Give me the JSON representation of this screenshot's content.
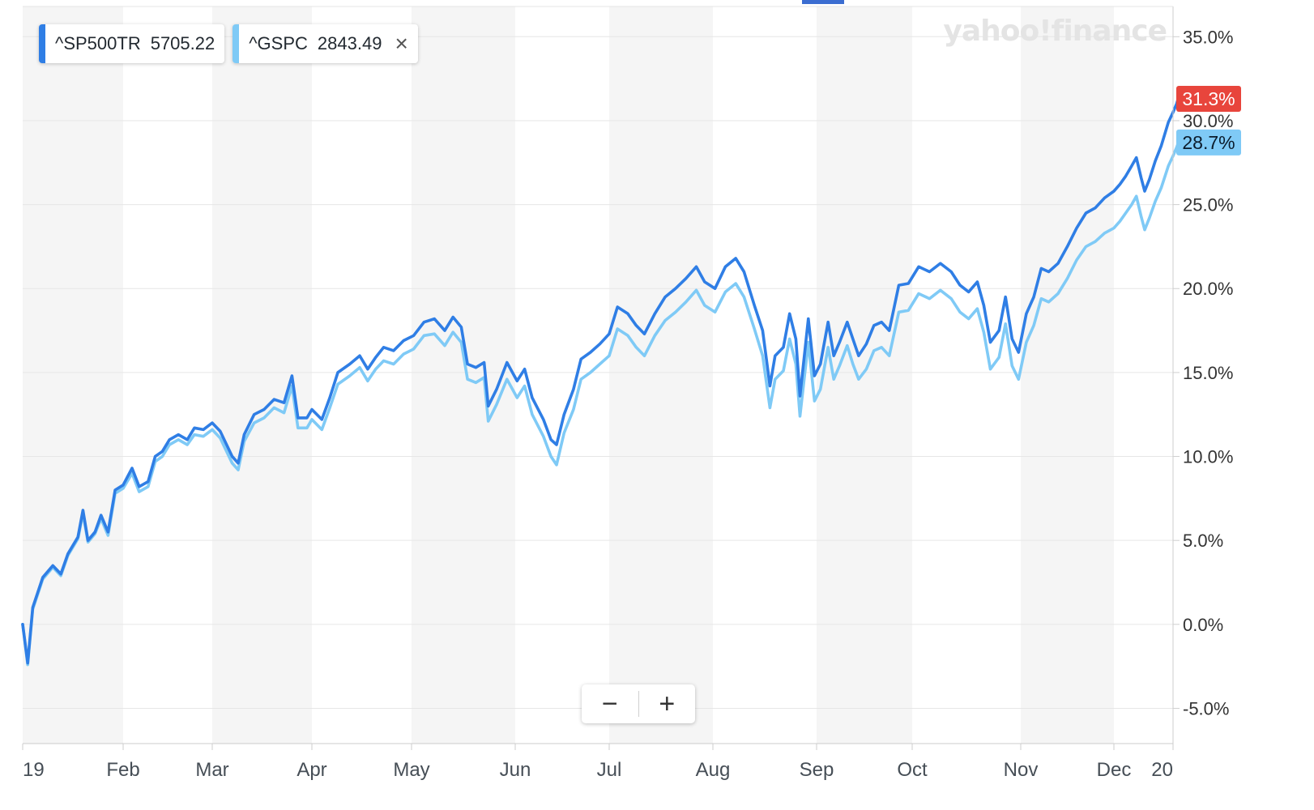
{
  "watermark": "yahoo!finance",
  "legend": [
    {
      "symbol": "^SP500TR",
      "value": "5705.22",
      "color": "#2f7ee5"
    },
    {
      "symbol": "^GSPC",
      "value": "2843.49",
      "color": "#7fcaf6",
      "closable": true
    }
  ],
  "zoom": {
    "minus_label": "−",
    "plus_label": "+"
  },
  "colors": {
    "sp500tr": "#2f7ee5",
    "gspc": "#7fcaf6",
    "tag_red": "#e8453c",
    "tag_lightblue": "#7fcaf6",
    "band": "#f5f5f5"
  },
  "chart_data": {
    "type": "line",
    "x_axis_labels": [
      "19",
      "Feb",
      "Mar",
      "Apr",
      "May",
      "Jun",
      "Jul",
      "Aug",
      "Sep",
      "Oct",
      "Nov",
      "Dec",
      "20"
    ],
    "y_ticks": [
      "35.0%",
      "30.0%",
      "25.0%",
      "20.0%",
      "15.0%",
      "10.0%",
      "5.0%",
      "0.0%",
      "-5.0%"
    ],
    "ylim": [
      -7.1,
      36.8
    ],
    "x_range": [
      0,
      12
    ],
    "last_value_tags": [
      {
        "series": "^SP500TR",
        "label": "31.3%",
        "value": 31.3
      },
      {
        "series": "^GSPC",
        "label": "28.7%",
        "value": 28.7
      }
    ],
    "series": [
      {
        "name": "^SP500TR",
        "points": [
          [
            0.0,
            0.0
          ],
          [
            0.05,
            -2.3
          ],
          [
            0.1,
            1.0
          ],
          [
            0.2,
            2.8
          ],
          [
            0.3,
            3.5
          ],
          [
            0.38,
            3.0
          ],
          [
            0.45,
            4.2
          ],
          [
            0.55,
            5.2
          ],
          [
            0.6,
            6.8
          ],
          [
            0.65,
            5.0
          ],
          [
            0.72,
            5.5
          ],
          [
            0.78,
            6.5
          ],
          [
            0.85,
            5.5
          ],
          [
            0.92,
            8.0
          ],
          [
            1.0,
            8.3
          ],
          [
            1.1,
            9.3
          ],
          [
            1.18,
            8.2
          ],
          [
            1.28,
            8.5
          ],
          [
            1.36,
            10.0
          ],
          [
            1.44,
            10.3
          ],
          [
            1.52,
            11.0
          ],
          [
            1.62,
            11.3
          ],
          [
            1.72,
            11.0
          ],
          [
            1.8,
            11.7
          ],
          [
            1.9,
            11.6
          ],
          [
            2.0,
            12.0
          ],
          [
            2.08,
            11.5
          ],
          [
            2.2,
            10.0
          ],
          [
            2.26,
            9.6
          ],
          [
            2.32,
            11.3
          ],
          [
            2.42,
            12.5
          ],
          [
            2.52,
            12.8
          ],
          [
            2.62,
            13.4
          ],
          [
            2.72,
            13.2
          ],
          [
            2.8,
            14.8
          ],
          [
            2.86,
            12.3
          ],
          [
            2.95,
            12.3
          ],
          [
            3.0,
            12.8
          ],
          [
            3.1,
            12.2
          ],
          [
            3.18,
            13.5
          ],
          [
            3.26,
            15.0
          ],
          [
            3.38,
            15.5
          ],
          [
            3.48,
            16.0
          ],
          [
            3.56,
            15.2
          ],
          [
            3.64,
            15.9
          ],
          [
            3.72,
            16.5
          ],
          [
            3.82,
            16.3
          ],
          [
            3.92,
            16.9
          ],
          [
            4.02,
            17.2
          ],
          [
            4.12,
            18.0
          ],
          [
            4.22,
            18.2
          ],
          [
            4.32,
            17.5
          ],
          [
            4.4,
            18.3
          ],
          [
            4.48,
            17.7
          ],
          [
            4.54,
            15.5
          ],
          [
            4.62,
            15.3
          ],
          [
            4.7,
            15.6
          ],
          [
            4.74,
            13.0
          ],
          [
            4.82,
            14.0
          ],
          [
            4.92,
            15.6
          ],
          [
            5.02,
            14.5
          ],
          [
            5.1,
            15.2
          ],
          [
            5.18,
            13.5
          ],
          [
            5.3,
            12.2
          ],
          [
            5.38,
            11.0
          ],
          [
            5.44,
            10.7
          ],
          [
            5.52,
            12.5
          ],
          [
            5.62,
            14.0
          ],
          [
            5.7,
            15.8
          ],
          [
            5.8,
            16.2
          ],
          [
            5.9,
            16.7
          ],
          [
            6.0,
            17.3
          ],
          [
            6.08,
            18.9
          ],
          [
            6.18,
            18.5
          ],
          [
            6.26,
            17.8
          ],
          [
            6.34,
            17.3
          ],
          [
            6.44,
            18.5
          ],
          [
            6.54,
            19.5
          ],
          [
            6.64,
            20.0
          ],
          [
            6.74,
            20.6
          ],
          [
            6.84,
            21.3
          ],
          [
            6.92,
            20.4
          ],
          [
            7.02,
            20.0
          ],
          [
            7.12,
            21.3
          ],
          [
            7.22,
            21.8
          ],
          [
            7.3,
            21.0
          ],
          [
            7.4,
            19.0
          ],
          [
            7.48,
            17.5
          ],
          [
            7.55,
            14.2
          ],
          [
            7.6,
            16.0
          ],
          [
            7.68,
            16.5
          ],
          [
            7.74,
            18.5
          ],
          [
            7.8,
            17.0
          ],
          [
            7.84,
            13.6
          ],
          [
            7.92,
            18.2
          ],
          [
            7.98,
            14.8
          ],
          [
            8.04,
            15.5
          ],
          [
            8.12,
            18.0
          ],
          [
            8.18,
            16.0
          ],
          [
            8.24,
            16.8
          ],
          [
            8.32,
            18.0
          ],
          [
            8.38,
            17.0
          ],
          [
            8.44,
            16.0
          ],
          [
            8.52,
            16.7
          ],
          [
            8.6,
            17.8
          ],
          [
            8.68,
            18.0
          ],
          [
            8.76,
            17.5
          ],
          [
            8.86,
            20.2
          ],
          [
            8.96,
            20.3
          ],
          [
            9.06,
            21.3
          ],
          [
            9.16,
            21.0
          ],
          [
            9.26,
            21.5
          ],
          [
            9.36,
            21.0
          ],
          [
            9.44,
            20.2
          ],
          [
            9.52,
            19.8
          ],
          [
            9.6,
            20.4
          ],
          [
            9.66,
            19.0
          ],
          [
            9.72,
            16.8
          ],
          [
            9.8,
            17.5
          ],
          [
            9.86,
            19.5
          ],
          [
            9.92,
            17.0
          ],
          [
            9.98,
            16.2
          ],
          [
            10.06,
            18.5
          ],
          [
            10.14,
            19.5
          ],
          [
            10.22,
            21.2
          ],
          [
            10.3,
            21.0
          ],
          [
            10.4,
            21.5
          ],
          [
            10.5,
            22.5
          ],
          [
            10.6,
            23.6
          ],
          [
            10.7,
            24.5
          ],
          [
            10.8,
            24.8
          ],
          [
            10.9,
            25.4
          ],
          [
            11.0,
            25.8
          ],
          [
            11.1,
            26.2
          ],
          [
            11.2,
            26.7
          ],
          [
            11.3,
            27.3
          ],
          [
            11.38,
            27.8
          ],
          [
            11.46,
            26.6
          ],
          [
            11.52,
            25.8
          ],
          [
            11.6,
            26.5
          ],
          [
            11.7,
            27.6
          ],
          [
            11.8,
            28.5
          ],
          [
            11.92,
            29.9
          ],
          [
            12.0,
            30.5
          ],
          [
            12.06,
            31.0
          ],
          [
            12.12,
            31.7
          ],
          [
            12.18,
            31.3
          ]
        ]
      },
      {
        "name": "^GSPC",
        "points": [
          [
            0.0,
            0.0
          ],
          [
            0.05,
            -2.4
          ],
          [
            0.1,
            0.9
          ],
          [
            0.2,
            2.7
          ],
          [
            0.3,
            3.4
          ],
          [
            0.38,
            2.9
          ],
          [
            0.45,
            4.1
          ],
          [
            0.55,
            5.1
          ],
          [
            0.6,
            6.6
          ],
          [
            0.65,
            4.9
          ],
          [
            0.72,
            5.4
          ],
          [
            0.78,
            6.3
          ],
          [
            0.85,
            5.3
          ],
          [
            0.92,
            7.8
          ],
          [
            1.0,
            8.1
          ],
          [
            1.1,
            9.0
          ],
          [
            1.18,
            7.9
          ],
          [
            1.28,
            8.2
          ],
          [
            1.36,
            9.7
          ],
          [
            1.44,
            10.0
          ],
          [
            1.52,
            10.7
          ],
          [
            1.62,
            11.0
          ],
          [
            1.72,
            10.7
          ],
          [
            1.8,
            11.3
          ],
          [
            1.9,
            11.2
          ],
          [
            2.0,
            11.6
          ],
          [
            2.08,
            11.1
          ],
          [
            2.2,
            9.6
          ],
          [
            2.26,
            9.2
          ],
          [
            2.32,
            10.9
          ],
          [
            2.42,
            12.0
          ],
          [
            2.52,
            12.3
          ],
          [
            2.62,
            12.9
          ],
          [
            2.72,
            12.6
          ],
          [
            2.8,
            14.2
          ],
          [
            2.86,
            11.7
          ],
          [
            2.95,
            11.7
          ],
          [
            3.0,
            12.2
          ],
          [
            3.1,
            11.6
          ],
          [
            3.18,
            12.9
          ],
          [
            3.26,
            14.3
          ],
          [
            3.38,
            14.8
          ],
          [
            3.48,
            15.3
          ],
          [
            3.56,
            14.5
          ],
          [
            3.64,
            15.2
          ],
          [
            3.72,
            15.7
          ],
          [
            3.82,
            15.5
          ],
          [
            3.92,
            16.1
          ],
          [
            4.02,
            16.4
          ],
          [
            4.12,
            17.2
          ],
          [
            4.22,
            17.3
          ],
          [
            4.32,
            16.6
          ],
          [
            4.4,
            17.4
          ],
          [
            4.48,
            16.8
          ],
          [
            4.54,
            14.6
          ],
          [
            4.62,
            14.4
          ],
          [
            4.7,
            14.7
          ],
          [
            4.74,
            12.1
          ],
          [
            4.82,
            13.1
          ],
          [
            4.92,
            14.6
          ],
          [
            5.02,
            13.5
          ],
          [
            5.1,
            14.2
          ],
          [
            5.18,
            12.5
          ],
          [
            5.3,
            11.2
          ],
          [
            5.38,
            10.0
          ],
          [
            5.44,
            9.5
          ],
          [
            5.52,
            11.4
          ],
          [
            5.62,
            12.8
          ],
          [
            5.7,
            14.6
          ],
          [
            5.8,
            15.0
          ],
          [
            5.9,
            15.5
          ],
          [
            6.0,
            16.0
          ],
          [
            6.08,
            17.6
          ],
          [
            6.18,
            17.2
          ],
          [
            6.26,
            16.5
          ],
          [
            6.34,
            16.0
          ],
          [
            6.44,
            17.2
          ],
          [
            6.54,
            18.1
          ],
          [
            6.64,
            18.6
          ],
          [
            6.74,
            19.2
          ],
          [
            6.84,
            19.9
          ],
          [
            6.92,
            19.0
          ],
          [
            7.02,
            18.6
          ],
          [
            7.12,
            19.8
          ],
          [
            7.22,
            20.3
          ],
          [
            7.3,
            19.5
          ],
          [
            7.4,
            17.6
          ],
          [
            7.48,
            16.0
          ],
          [
            7.55,
            12.9
          ],
          [
            7.6,
            14.6
          ],
          [
            7.68,
            15.1
          ],
          [
            7.74,
            17.0
          ],
          [
            7.8,
            15.5
          ],
          [
            7.84,
            12.4
          ],
          [
            7.92,
            16.8
          ],
          [
            7.98,
            13.3
          ],
          [
            8.04,
            14.0
          ],
          [
            8.12,
            16.5
          ],
          [
            8.18,
            14.6
          ],
          [
            8.24,
            15.4
          ],
          [
            8.32,
            16.6
          ],
          [
            8.38,
            15.5
          ],
          [
            8.44,
            14.6
          ],
          [
            8.52,
            15.2
          ],
          [
            8.6,
            16.3
          ],
          [
            8.68,
            16.5
          ],
          [
            8.76,
            16.0
          ],
          [
            8.86,
            18.6
          ],
          [
            8.96,
            18.7
          ],
          [
            9.06,
            19.7
          ],
          [
            9.16,
            19.4
          ],
          [
            9.26,
            19.9
          ],
          [
            9.36,
            19.4
          ],
          [
            9.44,
            18.6
          ],
          [
            9.52,
            18.2
          ],
          [
            9.6,
            18.8
          ],
          [
            9.66,
            17.4
          ],
          [
            9.72,
            15.2
          ],
          [
            9.8,
            15.9
          ],
          [
            9.86,
            17.9
          ],
          [
            9.92,
            15.4
          ],
          [
            9.98,
            14.6
          ],
          [
            10.06,
            16.8
          ],
          [
            10.14,
            17.8
          ],
          [
            10.22,
            19.4
          ],
          [
            10.3,
            19.2
          ],
          [
            10.4,
            19.7
          ],
          [
            10.5,
            20.6
          ],
          [
            10.6,
            21.7
          ],
          [
            10.7,
            22.5
          ],
          [
            10.8,
            22.8
          ],
          [
            10.9,
            23.3
          ],
          [
            11.0,
            23.6
          ],
          [
            11.1,
            24.0
          ],
          [
            11.2,
            24.5
          ],
          [
            11.3,
            25.0
          ],
          [
            11.38,
            25.5
          ],
          [
            11.46,
            24.3
          ],
          [
            11.52,
            23.5
          ],
          [
            11.6,
            24.2
          ],
          [
            11.7,
            25.2
          ],
          [
            11.8,
            26.0
          ],
          [
            11.92,
            27.3
          ],
          [
            12.0,
            27.9
          ],
          [
            12.06,
            28.4
          ],
          [
            12.12,
            29.0
          ],
          [
            12.18,
            28.7
          ]
        ]
      }
    ]
  }
}
